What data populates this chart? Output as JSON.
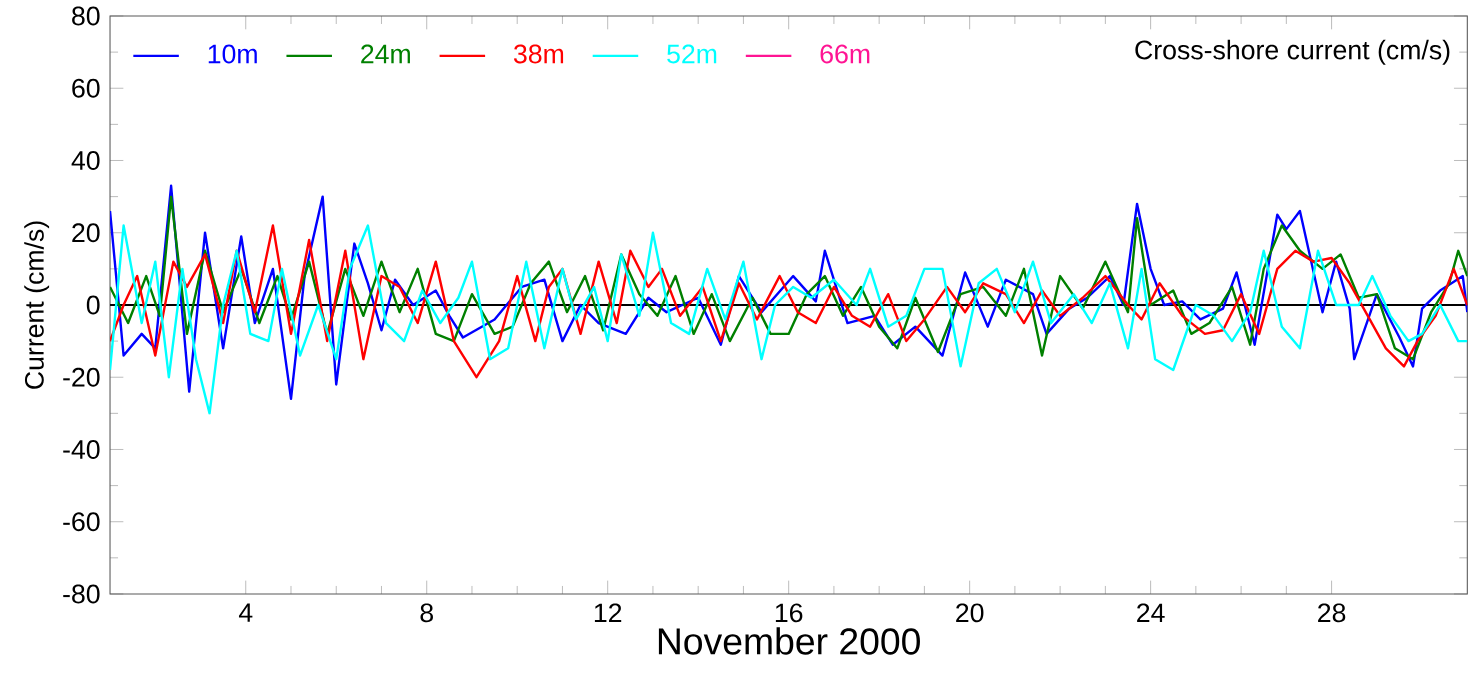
{
  "chart_data": {
    "type": "line",
    "title": "Cross-shore current (cm/s)",
    "xlabel": "November 2000",
    "ylabel": "Current (cm/s)",
    "xlim": [
      1,
      31
    ],
    "ylim": [
      -80,
      80
    ],
    "xticks": [
      4,
      8,
      12,
      16,
      20,
      24,
      28
    ],
    "yticks": [
      -80,
      -60,
      -40,
      -20,
      0,
      20,
      40,
      60,
      80
    ],
    "grid": false,
    "legend": "top left",
    "line_style": "solid",
    "marker": "none",
    "ref_lines": [
      {
        "axis": "y",
        "value": 0,
        "color": "#000000"
      }
    ],
    "series": [
      {
        "name": "10m",
        "color": "#0000ff",
        "x": [
          1.0,
          1.3,
          1.7,
          2.0,
          2.35,
          2.75,
          3.1,
          3.5,
          3.9,
          4.2,
          4.6,
          5.0,
          5.3,
          5.7,
          6.0,
          6.4,
          6.7,
          7.0,
          7.3,
          7.7,
          8.2,
          8.5,
          8.8,
          9.5,
          10.1,
          10.6,
          11.0,
          11.4,
          11.8,
          12.4,
          12.9,
          13.3,
          14.0,
          14.5,
          14.9,
          15.4,
          16.1,
          16.6,
          16.8,
          17.3,
          17.9,
          18.3,
          18.8,
          19.4,
          19.9,
          20.4,
          20.8,
          21.4,
          21.7,
          22.2,
          22.6,
          23.1,
          23.4,
          23.7,
          24.0,
          24.3,
          24.7,
          25.1,
          25.6,
          25.9,
          26.3,
          26.8,
          27.0,
          27.3,
          27.8,
          28.1,
          28.4,
          28.5,
          29.0,
          29.5,
          29.8,
          30.0,
          30.4,
          30.9,
          31.0
        ],
        "values": [
          26,
          -14,
          -8,
          -12,
          33,
          -24,
          20,
          -12,
          19,
          -5,
          10,
          -26,
          8,
          30,
          -22,
          17,
          6,
          -7,
          7,
          0,
          4,
          -3,
          -9,
          -4,
          5,
          7,
          -10,
          0,
          -5,
          -8,
          2,
          -2,
          2,
          -11,
          8,
          -2,
          8,
          1,
          15,
          -5,
          -3,
          -11,
          -6,
          -14,
          9,
          -6,
          7,
          3,
          -8,
          -1,
          2,
          8,
          0,
          28,
          10,
          0,
          1,
          -4,
          -1,
          9,
          -11,
          25,
          21,
          26,
          -2,
          12,
          -1,
          -15,
          3,
          -9,
          -17,
          -1,
          4,
          8,
          -2
        ]
      },
      {
        "name": "24m",
        "color": "#008000",
        "x": [
          1.0,
          1.4,
          1.8,
          2.1,
          2.35,
          2.7,
          3.1,
          3.5,
          3.9,
          4.3,
          4.7,
          5.0,
          5.4,
          5.8,
          6.2,
          6.6,
          7.0,
          7.4,
          7.8,
          8.2,
          8.6,
          9.0,
          9.5,
          9.9,
          10.3,
          10.7,
          11.1,
          11.5,
          11.9,
          12.3,
          12.7,
          13.1,
          13.5,
          13.9,
          14.3,
          14.7,
          15.2,
          15.6,
          16.0,
          16.4,
          16.8,
          17.2,
          17.6,
          18.0,
          18.4,
          18.8,
          19.3,
          19.8,
          20.3,
          20.8,
          21.2,
          21.6,
          22.0,
          22.5,
          23.0,
          23.5,
          23.7,
          24.0,
          24.5,
          24.9,
          25.3,
          25.8,
          26.2,
          26.5,
          26.9,
          27.3,
          27.8,
          28.2,
          28.6,
          29.0,
          29.4,
          29.8,
          30.2,
          30.6,
          30.8,
          31.0
        ],
        "values": [
          5,
          -5,
          8,
          -3,
          30,
          -8,
          15,
          -2,
          10,
          -5,
          8,
          -4,
          12,
          -8,
          10,
          -3,
          12,
          -2,
          10,
          -8,
          -10,
          3,
          -8,
          -6,
          6,
          12,
          -2,
          8,
          -7,
          14,
          3,
          -3,
          8,
          -8,
          3,
          -10,
          2,
          -8,
          -8,
          3,
          8,
          -3,
          5,
          -6,
          -12,
          2,
          -13,
          3,
          5,
          -3,
          10,
          -14,
          8,
          -1,
          12,
          -2,
          24,
          0,
          4,
          -8,
          -5,
          5,
          -11,
          10,
          22,
          15,
          10,
          14,
          2,
          3,
          -12,
          -15,
          -2,
          6,
          15,
          8
        ]
      },
      {
        "name": "38m",
        "color": "#ff0000",
        "x": [
          1.0,
          1.3,
          1.6,
          2.0,
          2.4,
          2.7,
          3.1,
          3.5,
          3.8,
          4.2,
          4.6,
          5.0,
          5.4,
          5.8,
          6.2,
          6.6,
          7.0,
          7.4,
          7.8,
          8.2,
          8.6,
          9.1,
          9.6,
          10.0,
          10.4,
          10.7,
          11.0,
          11.4,
          11.8,
          12.2,
          12.5,
          12.9,
          13.2,
          13.6,
          14.1,
          14.5,
          14.9,
          15.3,
          15.8,
          16.2,
          16.6,
          17.0,
          17.4,
          17.8,
          18.2,
          18.6,
          19.0,
          19.5,
          19.9,
          20.3,
          20.8,
          21.2,
          21.6,
          22.0,
          22.5,
          23.0,
          23.5,
          23.8,
          24.2,
          24.7,
          25.2,
          25.6,
          26.0,
          26.4,
          26.8,
          27.2,
          27.6,
          28.0,
          28.4,
          28.8,
          29.2,
          29.6,
          29.9,
          30.3,
          30.7,
          31.0
        ],
        "values": [
          -10,
          0,
          8,
          -14,
          12,
          5,
          14,
          -5,
          15,
          -2,
          22,
          -8,
          18,
          -10,
          15,
          -15,
          8,
          5,
          -5,
          12,
          -10,
          -20,
          -10,
          8,
          -10,
          5,
          10,
          -8,
          12,
          -5,
          15,
          5,
          10,
          -3,
          5,
          -10,
          6,
          -4,
          8,
          -2,
          -5,
          5,
          -3,
          -6,
          3,
          -10,
          -4,
          5,
          -2,
          6,
          3,
          -5,
          4,
          -3,
          2,
          8,
          0,
          -4,
          6,
          -3,
          -8,
          -7,
          3,
          -8,
          10,
          15,
          12,
          13,
          6,
          -3,
          -12,
          -17,
          -10,
          -3,
          10,
          0
        ]
      },
      {
        "name": "52m",
        "color": "#00ffff",
        "x": [
          1.0,
          1.3,
          1.7,
          2.0,
          2.3,
          2.6,
          2.9,
          3.2,
          3.5,
          3.8,
          4.1,
          4.5,
          4.8,
          5.2,
          5.6,
          6.0,
          6.3,
          6.7,
          7.1,
          7.5,
          7.9,
          8.3,
          8.7,
          9.0,
          9.4,
          9.8,
          10.2,
          10.6,
          11.0,
          11.3,
          11.7,
          12.0,
          12.3,
          12.7,
          13.0,
          13.4,
          13.8,
          14.2,
          14.6,
          15.0,
          15.4,
          15.7,
          16.1,
          16.5,
          17.0,
          17.5,
          17.8,
          18.2,
          18.6,
          19.0,
          19.4,
          19.8,
          20.2,
          20.6,
          21.0,
          21.4,
          21.8,
          22.3,
          22.7,
          23.1,
          23.5,
          23.8,
          24.1,
          24.5,
          25.0,
          25.4,
          25.8,
          26.2,
          26.5,
          26.9,
          27.3,
          27.7,
          28.1,
          28.6,
          28.9,
          29.3,
          29.7,
          30.0,
          30.4,
          30.8,
          31.0
        ],
        "values": [
          -18,
          22,
          -5,
          12,
          -20,
          10,
          -15,
          -30,
          0,
          15,
          -8,
          -10,
          10,
          -14,
          0,
          -15,
          10,
          22,
          -5,
          -10,
          4,
          -5,
          2,
          12,
          -15,
          -12,
          12,
          -12,
          10,
          -4,
          5,
          -10,
          14,
          -3,
          20,
          -5,
          -8,
          10,
          -4,
          12,
          -15,
          0,
          5,
          2,
          7,
          0,
          10,
          -6,
          -3,
          10,
          10,
          -17,
          6,
          10,
          -2,
          12,
          -5,
          3,
          -5,
          6,
          -12,
          10,
          -15,
          -18,
          0,
          -3,
          -10,
          -2,
          15,
          -6,
          -12,
          15,
          0,
          0,
          8,
          -3,
          -10,
          -8,
          0,
          -10,
          -10
        ]
      },
      {
        "name": "66m",
        "color": "#ff1493"
      }
    ]
  }
}
